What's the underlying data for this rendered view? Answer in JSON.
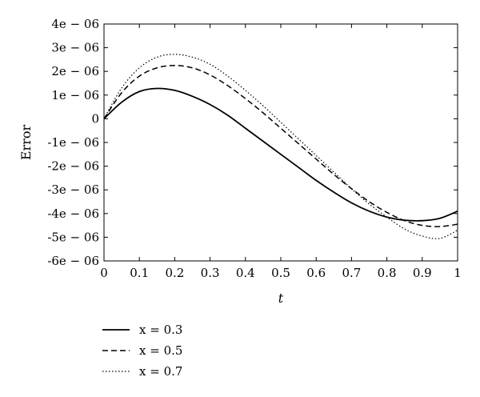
{
  "chart_data": {
    "type": "line",
    "title": "",
    "xlabel": "t",
    "ylabel": "Error",
    "xlim": [
      0,
      1
    ],
    "ylim": [
      -6e-06,
      4e-06
    ],
    "grid": false,
    "legend_position": "bottom-left",
    "x_ticks": [
      0,
      0.1,
      0.2,
      0.3,
      0.4,
      0.5,
      0.6,
      0.7,
      0.8,
      0.9,
      1
    ],
    "x_tick_labels": [
      "0",
      "0.1",
      "0.2",
      "0.3",
      "0.4",
      "0.5",
      "0.6",
      "0.7",
      "0.8",
      "0.9",
      "1"
    ],
    "y_ticks": [
      4e-06,
      3e-06,
      2e-06,
      1e-06,
      0,
      -1e-06,
      -2e-06,
      -3e-06,
      -4e-06,
      -5e-06,
      -6e-06
    ],
    "y_tick_labels": [
      "4e − 06",
      "3e − 06",
      "2e − 06",
      "1e − 06",
      "0",
      "-1e − 06",
      "-2e − 06",
      "-3e − 06",
      "-4e − 06",
      "-5e − 06",
      "-6e − 06"
    ],
    "x": [
      0,
      0.05,
      0.1,
      0.15,
      0.2,
      0.25,
      0.3,
      0.35,
      0.4,
      0.45,
      0.5,
      0.55,
      0.6,
      0.65,
      0.7,
      0.75,
      0.8,
      0.85,
      0.9,
      0.95,
      1.0
    ],
    "series": [
      {
        "name": "x = 0.3",
        "style": "solid",
        "values": [
          0,
          7e-07,
          1.15e-06,
          1.28e-06,
          1.2e-06,
          9.5e-07,
          6e-07,
          1.5e-07,
          -4e-07,
          -9.5e-07,
          -1.5e-06,
          -2.05e-06,
          -2.6e-06,
          -3.1e-06,
          -3.55e-06,
          -3.9e-06,
          -4.15e-06,
          -4.28e-06,
          -4.3e-06,
          -4.2e-06,
          -3.9e-06
        ]
      },
      {
        "name": "x = 0.5",
        "style": "dashed",
        "values": [
          0,
          1.1e-06,
          1.8e-06,
          2.15e-06,
          2.25e-06,
          2.15e-06,
          1.85e-06,
          1.4e-06,
          8.5e-07,
          2.5e-07,
          -4e-07,
          -1.05e-06,
          -1.7e-06,
          -2.35e-06,
          -2.95e-06,
          -3.5e-06,
          -3.95e-06,
          -4.3e-06,
          -4.5e-06,
          -4.55e-06,
          -4.45e-06
        ]
      },
      {
        "name": "x = 0.7",
        "style": "dotted",
        "values": [
          0,
          1.3e-06,
          2.15e-06,
          2.6e-06,
          2.72e-06,
          2.6e-06,
          2.3e-06,
          1.8e-06,
          1.2e-06,
          5.5e-07,
          -1.5e-07,
          -8.5e-07,
          -1.55e-06,
          -2.25e-06,
          -2.95e-06,
          -3.6e-06,
          -4.15e-06,
          -4.65e-06,
          -4.95e-06,
          -5.05e-06,
          -4.7e-06
        ]
      }
    ]
  }
}
